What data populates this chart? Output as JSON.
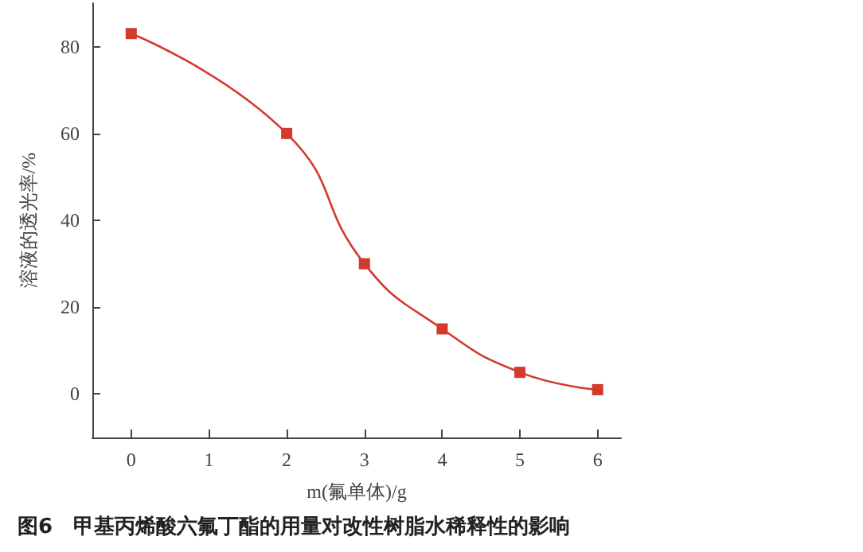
{
  "chart_data": {
    "type": "line",
    "title": "图6　甲基丙烯酸六氟丁酯的用量对改性树脂水稀释性的影响",
    "xlabel": "m(氟单体)/g",
    "ylabel": "溶液的透光率/%",
    "x": [
      0,
      2,
      3,
      4,
      5,
      6
    ],
    "series": [
      {
        "color": "#d23a2e",
        "values": [
          83,
          60,
          30,
          15,
          5,
          1
        ]
      }
    ],
    "xlim": [
      -0.5,
      6.3
    ],
    "xticks": [
      0,
      1,
      2,
      3,
      4,
      5,
      6
    ],
    "ylim": [
      -10,
      90
    ],
    "yticks": [
      0,
      20,
      40,
      60,
      80
    ],
    "marker": "square",
    "line_style": "solid"
  }
}
